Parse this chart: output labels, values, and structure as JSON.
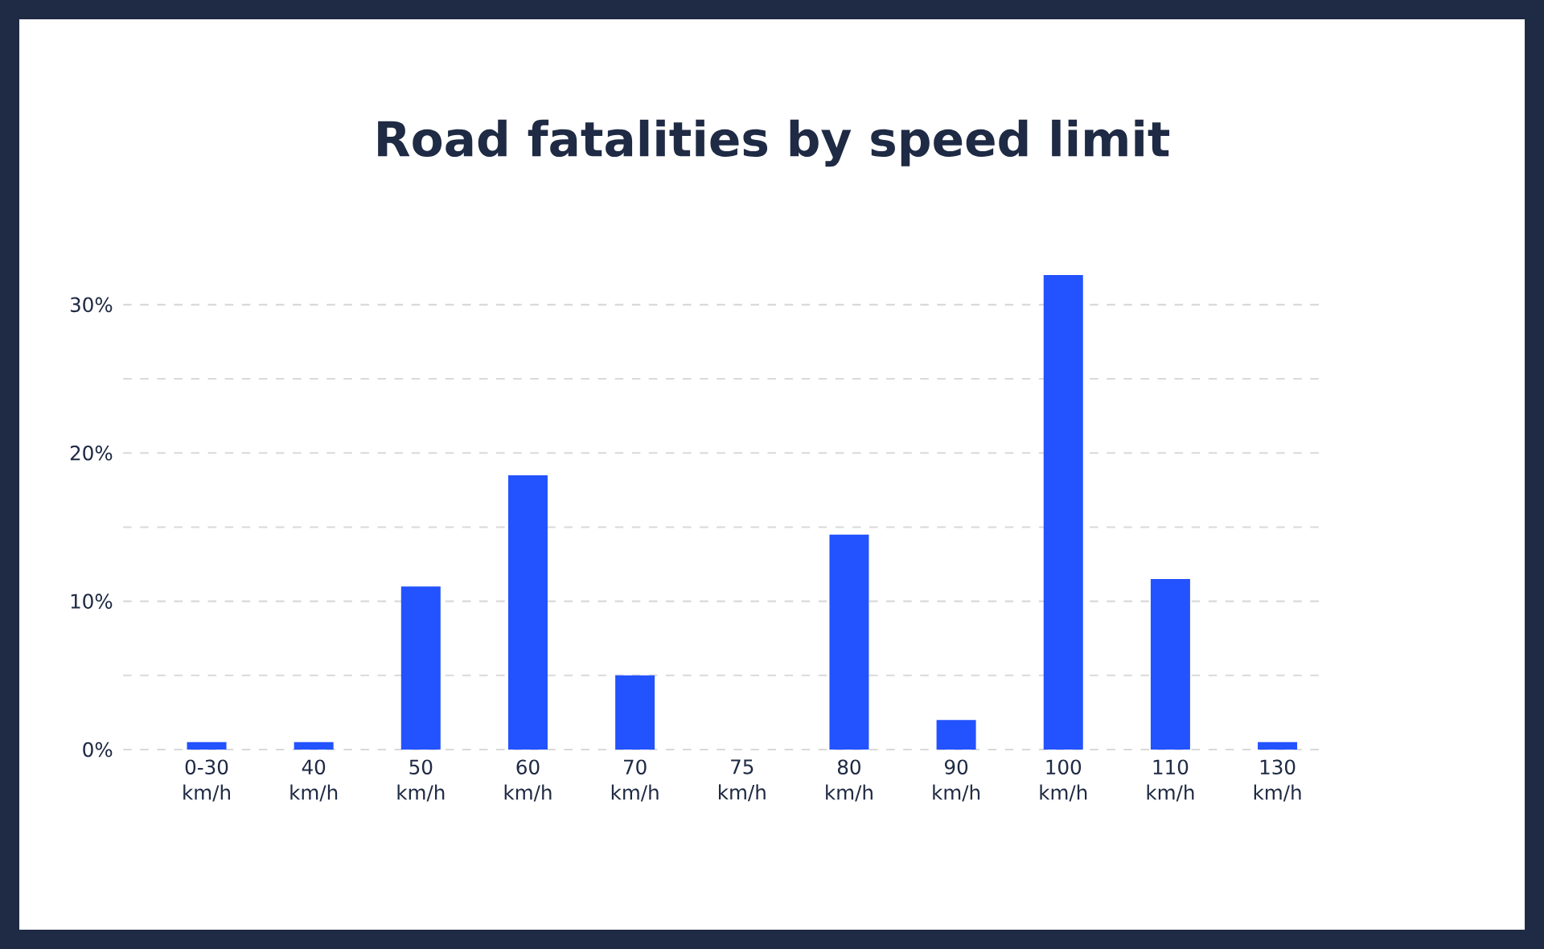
{
  "chart_data": {
    "type": "bar",
    "title": "Road fatalities by speed limit",
    "categories": [
      "0-30 km/h",
      "40 km/h",
      "50 km/h",
      "60 km/h",
      "70 km/h",
      "75 km/h",
      "80 km/h",
      "90 km/h",
      "100 km/h",
      "110 km/h",
      "130 km/h"
    ],
    "values": [
      0.5,
      0.5,
      11,
      18.5,
      5,
      0,
      14.5,
      2,
      32,
      11.5,
      0.5
    ],
    "color": "#2352ff",
    "ylim": [
      0,
      32
    ],
    "yticks": [
      {
        "value": 0,
        "label": "0%"
      },
      {
        "value": 5,
        "label": null
      },
      {
        "value": 10,
        "label": "10%"
      },
      {
        "value": 15,
        "label": null
      },
      {
        "value": 20,
        "label": "20%"
      },
      {
        "value": 25,
        "label": null
      },
      {
        "value": 30,
        "label": "30%"
      }
    ],
    "grid": "y"
  }
}
